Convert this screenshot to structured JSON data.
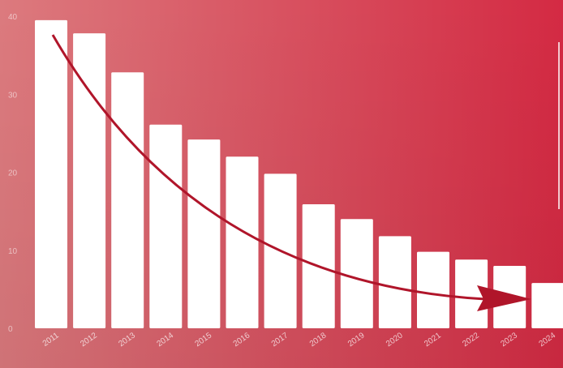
{
  "chart_data": {
    "type": "bar",
    "categories": [
      "2011",
      "2012",
      "2013",
      "2014",
      "2015",
      "2016",
      "2017",
      "2018",
      "2019",
      "2020",
      "2021",
      "2022",
      "2023",
      "2024"
    ],
    "values": [
      39.5,
      37.8,
      32.8,
      26.1,
      24.2,
      22.0,
      19.8,
      15.9,
      14.0,
      11.8,
      9.8,
      8.8,
      8.0,
      5.8
    ],
    "ylim": [
      0,
      40
    ],
    "yticks": [
      "0",
      "10",
      "20",
      "30",
      "40"
    ],
    "title": "",
    "xlabel": "",
    "ylabel": "",
    "grid": false,
    "annotation": "downward trend arrow",
    "colors": {
      "background_left": "#dc7a7e",
      "background_right": "#d42a43",
      "bar": "#ffffff",
      "arrow": "#b0152a"
    }
  }
}
